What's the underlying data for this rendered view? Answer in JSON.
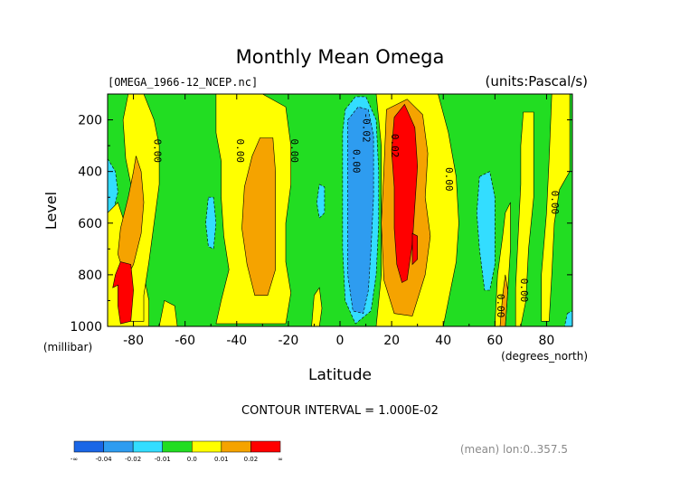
{
  "chart_data": {
    "type": "heatmap",
    "title": "Monthly Mean Omega",
    "file_label": "[OMEGA_1966-12_NCEP.nc]",
    "units_label": "(units:Pascal/s)",
    "xlabel": "Latitude",
    "ylabel": "Level",
    "x_unit_label": "(degrees_north)",
    "y_unit_label": "(millibar)",
    "xlim": [
      -90,
      90
    ],
    "ylim": [
      1000,
      100
    ],
    "x_ticks": [
      "-80",
      "-60",
      "-40",
      "-20",
      "0",
      "20",
      "40",
      "60",
      "80"
    ],
    "x_tick_values": [
      -80,
      -60,
      -40,
      -20,
      0,
      20,
      40,
      60,
      80
    ],
    "y_ticks": [
      "200",
      "400",
      "600",
      "800",
      "1000"
    ],
    "y_tick_values": [
      200,
      400,
      600,
      800,
      1000
    ],
    "contour_interval_text": "CONTOUR INTERVAL = 1.000E-02",
    "mean_note": "(mean) lon:0..357.5",
    "colorbar": {
      "colors": [
        "#1a66e6",
        "#2e9cf0",
        "#33ddff",
        "#22dd22",
        "#ffff00",
        "#f5a300",
        "#ff0000"
      ],
      "labels": [
        "-∞",
        "-0.04",
        "-0.02",
        "-0.01",
        "0.0",
        "0.01",
        "0.02",
        "∞"
      ]
    },
    "contour_labels": [
      {
        "text": "0.00",
        "lat": -72,
        "lev": 320
      },
      {
        "text": "0.00",
        "lat": -40,
        "lev": 320
      },
      {
        "text": "0.00",
        "lat": -19,
        "lev": 320
      },
      {
        "text": "-0.02",
        "lat": 9,
        "lev": 230
      },
      {
        "text": "0.00",
        "lat": 5,
        "lev": 360
      },
      {
        "text": "0.02",
        "lat": 20,
        "lev": 300
      },
      {
        "text": "0.00",
        "lat": 41,
        "lev": 430
      },
      {
        "text": "0.00",
        "lat": 82,
        "lev": 520
      },
      {
        "text": "0.00",
        "lat": 70,
        "lev": 860
      },
      {
        "text": "0.00",
        "lat": 61,
        "lev": 920
      }
    ],
    "regions": [
      {
        "level": "neg_tiny",
        "color": "#33ddff",
        "pts": [
          [
            -90,
            350
          ],
          [
            -87,
            400
          ],
          [
            -86,
            480
          ],
          [
            -88,
            560
          ],
          [
            -90,
            600
          ]
        ]
      },
      {
        "level": "pos_small",
        "color": "#ffff00",
        "pts": [
          [
            -90,
            560
          ],
          [
            -86,
            520
          ],
          [
            -84,
            580
          ],
          [
            -80,
            700
          ],
          [
            -76,
            800
          ],
          [
            -74,
            900
          ],
          [
            -74,
            1000
          ],
          [
            -90,
            1000
          ]
        ]
      },
      {
        "level": "pos_small",
        "color": "#ffff00",
        "pts": [
          [
            -82,
            100
          ],
          [
            -76,
            100
          ],
          [
            -72,
            200
          ],
          [
            -70,
            300
          ],
          [
            -70,
            450
          ],
          [
            -72,
            600
          ],
          [
            -74,
            750
          ],
          [
            -76,
            880
          ],
          [
            -76,
            980
          ],
          [
            -82,
            980
          ],
          [
            -82,
            800
          ],
          [
            -80,
            650
          ],
          [
            -80,
            500
          ],
          [
            -83,
            350
          ],
          [
            -84,
            200
          ]
        ]
      },
      {
        "level": "pos_mid",
        "color": "#f5a300",
        "pts": [
          [
            -79,
            340
          ],
          [
            -77,
            400
          ],
          [
            -76,
            520
          ],
          [
            -77,
            640
          ],
          [
            -80,
            760
          ],
          [
            -83,
            820
          ],
          [
            -86,
            720
          ],
          [
            -85,
            620
          ],
          [
            -82,
            500
          ],
          [
            -80,
            400
          ]
        ]
      },
      {
        "level": "pos_large",
        "color": "#ff0000",
        "pts": [
          [
            -85,
            750
          ],
          [
            -81,
            760
          ],
          [
            -80,
            860
          ],
          [
            -81,
            980
          ],
          [
            -85,
            990
          ],
          [
            -86,
            920
          ],
          [
            -86,
            840
          ],
          [
            -88,
            850
          ],
          [
            -87,
            800
          ]
        ]
      },
      {
        "level": "pos_small",
        "color": "#ffff00",
        "pts": [
          [
            -48,
            100
          ],
          [
            -30,
            100
          ],
          [
            -21,
            150
          ],
          [
            -19,
            300
          ],
          [
            -19,
            450
          ],
          [
            -21,
            600
          ],
          [
            -21,
            750
          ],
          [
            -19,
            870
          ],
          [
            -21,
            990
          ],
          [
            -48,
            990
          ],
          [
            -46,
            900
          ],
          [
            -43,
            780
          ],
          [
            -45,
            650
          ],
          [
            -46,
            500
          ],
          [
            -46,
            360
          ],
          [
            -48,
            250
          ]
        ]
      },
      {
        "level": "pos_mid",
        "color": "#f5a300",
        "pts": [
          [
            -31,
            270
          ],
          [
            -26,
            270
          ],
          [
            -25,
            400
          ],
          [
            -25,
            600
          ],
          [
            -25,
            780
          ],
          [
            -28,
            880
          ],
          [
            -33,
            880
          ],
          [
            -36,
            760
          ],
          [
            -38,
            620
          ],
          [
            -37,
            460
          ],
          [
            -34,
            340
          ]
        ]
      },
      {
        "level": "neg_tiny",
        "color": "#33ddff",
        "pts": [
          [
            -51,
            500
          ],
          [
            -49,
            500
          ],
          [
            -48,
            600
          ],
          [
            -49,
            700
          ],
          [
            -51,
            690
          ],
          [
            -52,
            600
          ]
        ]
      },
      {
        "level": "neg_tiny",
        "color": "#33ddff",
        "pts": [
          [
            -8,
            450
          ],
          [
            -6,
            460
          ],
          [
            -6,
            560
          ],
          [
            -8,
            580
          ],
          [
            -9,
            520
          ]
        ]
      },
      {
        "level": "pos_small",
        "color": "#ffff00",
        "pts": [
          [
            -10,
            880
          ],
          [
            -8,
            850
          ],
          [
            -7,
            930
          ],
          [
            -8,
            1000
          ],
          [
            -11,
            1000
          ]
        ]
      },
      {
        "level": "pos_small",
        "color": "#ffff00",
        "pts": [
          [
            -68,
            900
          ],
          [
            -64,
            920
          ],
          [
            -63,
            1000
          ],
          [
            -70,
            1000
          ]
        ]
      },
      {
        "level": "neg_tiny",
        "color": "#33ddff",
        "pts": [
          [
            2,
            160
          ],
          [
            6,
            110
          ],
          [
            10,
            110
          ],
          [
            14,
            200
          ],
          [
            15,
            400
          ],
          [
            15,
            600
          ],
          [
            14,
            800
          ],
          [
            12,
            940
          ],
          [
            6,
            990
          ],
          [
            2,
            900
          ],
          [
            1,
            700
          ],
          [
            1,
            400
          ],
          [
            1,
            250
          ]
        ]
      },
      {
        "level": "neg_small",
        "color": "#2e9cf0",
        "pts": [
          [
            3,
            200
          ],
          [
            7,
            150
          ],
          [
            11,
            160
          ],
          [
            13,
            260
          ],
          [
            13,
            500
          ],
          [
            12,
            700
          ],
          [
            11,
            860
          ],
          [
            9,
            950
          ],
          [
            5,
            940
          ],
          [
            3,
            800
          ],
          [
            3,
            500
          ]
        ]
      },
      {
        "level": "pos_small",
        "color": "#ffff00",
        "pts": [
          [
            14,
            100
          ],
          [
            38,
            100
          ],
          [
            42,
            250
          ],
          [
            45,
            420
          ],
          [
            46,
            600
          ],
          [
            45,
            750
          ],
          [
            42,
            900
          ],
          [
            40,
            1000
          ],
          [
            14,
            1000
          ],
          [
            16,
            800
          ],
          [
            16,
            500
          ],
          [
            16,
            300
          ]
        ]
      },
      {
        "level": "pos_mid",
        "color": "#f5a300",
        "pts": [
          [
            18,
            160
          ],
          [
            26,
            120
          ],
          [
            32,
            180
          ],
          [
            34,
            330
          ],
          [
            33,
            500
          ],
          [
            35,
            650
          ],
          [
            33,
            800
          ],
          [
            28,
            960
          ],
          [
            21,
            950
          ],
          [
            17,
            820
          ],
          [
            16,
            600
          ],
          [
            17,
            400
          ]
        ]
      },
      {
        "level": "pos_large",
        "color": "#ff0000",
        "pts": [
          [
            21,
            190
          ],
          [
            25,
            140
          ],
          [
            29,
            230
          ],
          [
            30,
            380
          ],
          [
            29,
            530
          ],
          [
            28,
            680
          ],
          [
            26,
            820
          ],
          [
            24,
            830
          ],
          [
            22,
            760
          ],
          [
            21,
            620
          ],
          [
            21,
            460
          ],
          [
            20,
            320
          ]
        ]
      },
      {
        "level": "pos_large",
        "color": "#ff0000",
        "pts": [
          [
            28,
            640
          ],
          [
            30,
            650
          ],
          [
            30,
            740
          ],
          [
            28,
            760
          ]
        ]
      },
      {
        "level": "neg_tiny",
        "color": "#33ddff",
        "pts": [
          [
            54,
            420
          ],
          [
            58,
            400
          ],
          [
            60,
            500
          ],
          [
            60,
            620
          ],
          [
            60,
            760
          ],
          [
            58,
            860
          ],
          [
            56,
            860
          ],
          [
            54,
            700
          ],
          [
            53,
            560
          ]
        ]
      },
      {
        "level": "pos_small",
        "color": "#ffff00",
        "pts": [
          [
            60,
            1000
          ],
          [
            61,
            800
          ],
          [
            63,
            650
          ],
          [
            64,
            560
          ],
          [
            66,
            520
          ],
          [
            66,
            700
          ],
          [
            65,
            860
          ],
          [
            64,
            1000
          ]
        ]
      },
      {
        "level": "pos_mid",
        "color": "#f5a300",
        "pts": [
          [
            62,
            1000
          ],
          [
            63,
            880
          ],
          [
            64,
            800
          ],
          [
            65,
            860
          ],
          [
            64,
            1000
          ]
        ]
      },
      {
        "level": "pos_small",
        "color": "#ffff00",
        "pts": [
          [
            71,
            170
          ],
          [
            75,
            170
          ],
          [
            75,
            300
          ],
          [
            75,
            500
          ],
          [
            73,
            700
          ],
          [
            72,
            900
          ],
          [
            70,
            1000
          ],
          [
            68,
            1000
          ],
          [
            68,
            850
          ],
          [
            69,
            650
          ],
          [
            70,
            450
          ],
          [
            70,
            300
          ]
        ]
      },
      {
        "level": "pos_small",
        "color": "#ffff00",
        "pts": [
          [
            82,
            100
          ],
          [
            89,
            100
          ],
          [
            89,
            400
          ],
          [
            85,
            470
          ],
          [
            83,
            600
          ],
          [
            82,
            800
          ],
          [
            81,
            980
          ],
          [
            78,
            980
          ],
          [
            78,
            800
          ],
          [
            80,
            560
          ],
          [
            81,
            350
          ]
        ]
      },
      {
        "level": "neg_tiny",
        "color": "#33ddff",
        "pts": [
          [
            88,
            950
          ],
          [
            90,
            940
          ],
          [
            90,
            1000
          ],
          [
            87,
            1000
          ]
        ]
      }
    ]
  }
}
